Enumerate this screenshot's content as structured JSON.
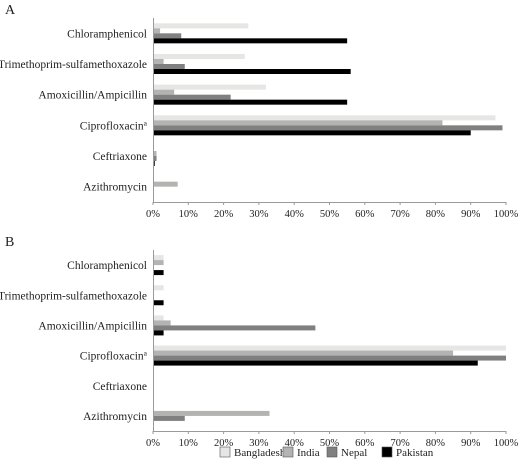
{
  "chart_data": [
    {
      "type": "bar",
      "orientation": "horizontal",
      "panel": "A",
      "categories": [
        "Chloramphenicol",
        "Trimethoprim-sulfamethoxazole",
        "Amoxicillin/Ampicillin",
        "Ciprofloxacin",
        "Ceftriaxone",
        "Azithromycin"
      ],
      "category_superscripts": [
        "",
        "",
        "",
        "a",
        "",
        ""
      ],
      "series": [
        {
          "name": "Bangladesh",
          "color": "#e6e6e4",
          "values": [
            27,
            26,
            32,
            97,
            0,
            0
          ]
        },
        {
          "name": "India",
          "color": "#b3b3b1",
          "values": [
            2,
            3,
            6,
            82,
            1,
            7
          ]
        },
        {
          "name": "Nepal",
          "color": "#808080",
          "values": [
            8,
            9,
            22,
            99,
            1,
            0
          ]
        },
        {
          "name": "Pakistan",
          "color": "#000000",
          "values": [
            55,
            56,
            55,
            90,
            0.5,
            0
          ]
        }
      ],
      "xlim": [
        0,
        100
      ],
      "xticks": [
        "0%",
        "10%",
        "20%",
        "30%",
        "40%",
        "50%",
        "60%",
        "70%",
        "80%",
        "90%",
        "100%"
      ]
    },
    {
      "type": "bar",
      "orientation": "horizontal",
      "panel": "B",
      "categories": [
        "Chloramphenicol",
        "Trimethoprim-sulfamethoxazole",
        "Amoxicillin/Ampicillin",
        "Ciprofloxacin",
        "Ceftriaxone",
        "Azithromycin"
      ],
      "category_superscripts": [
        "",
        "",
        "",
        "a",
        "",
        ""
      ],
      "series": [
        {
          "name": "Bangladesh",
          "color": "#e6e6e4",
          "values": [
            3,
            3,
            3,
            100,
            0,
            0
          ]
        },
        {
          "name": "India",
          "color": "#b3b3b1",
          "values": [
            3,
            0,
            5,
            85,
            0,
            33
          ]
        },
        {
          "name": "Nepal",
          "color": "#808080",
          "values": [
            0,
            0,
            46,
            100,
            0,
            9
          ]
        },
        {
          "name": "Pakistan",
          "color": "#000000",
          "values": [
            3,
            3,
            3,
            92,
            0,
            0
          ]
        }
      ],
      "xlim": [
        0,
        100
      ],
      "xticks": [
        "0%",
        "10%",
        "20%",
        "30%",
        "40%",
        "50%",
        "60%",
        "70%",
        "80%",
        "90%",
        "100%"
      ]
    }
  ],
  "legend": {
    "placement": "bottom",
    "items": [
      {
        "name": "Bangladesh",
        "color": "#e6e6e4"
      },
      {
        "name": "India",
        "color": "#b3b3b1"
      },
      {
        "name": "Nepal",
        "color": "#808080"
      },
      {
        "name": "Pakistan",
        "color": "#000000"
      }
    ]
  }
}
